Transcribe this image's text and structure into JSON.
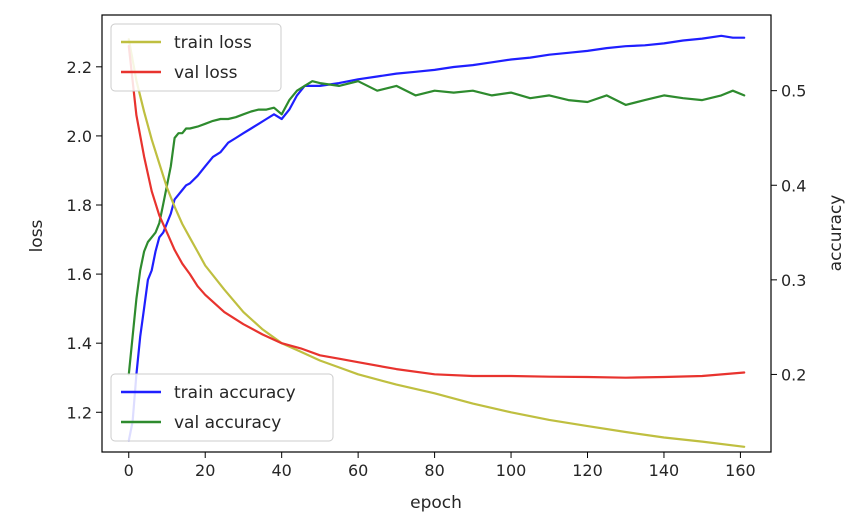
{
  "chart_data": {
    "type": "line",
    "xlabel": "epoch",
    "ylabel_left": "loss",
    "ylabel_right": "accuracy",
    "xlim": [
      -7,
      168
    ],
    "ylim_left": [
      1.085,
      2.35
    ],
    "ylim_right": [
      0.118,
      0.58
    ],
    "x_ticks": [
      0,
      20,
      40,
      60,
      80,
      100,
      120,
      140,
      160
    ],
    "y_left_ticks": [
      1.2,
      1.4,
      1.6,
      1.8,
      2.0,
      2.2
    ],
    "y_right_ticks": [
      0.2,
      0.3,
      0.4,
      0.5
    ],
    "legend_loss": {
      "position": "top-left",
      "entries": [
        "train loss",
        "val loss"
      ]
    },
    "legend_accuracy": {
      "position": "bottom-left",
      "entries": [
        "train accuracy",
        "val accuracy"
      ]
    },
    "series": [
      {
        "name": "train loss",
        "axis": "left",
        "color": "#bfbf40",
        "x": [
          0,
          2,
          4,
          6,
          8,
          10,
          12,
          14,
          16,
          18,
          20,
          25,
          30,
          35,
          40,
          45,
          50,
          55,
          60,
          70,
          80,
          90,
          100,
          110,
          120,
          130,
          140,
          150,
          161
        ],
        "y": [
          2.28,
          2.16,
          2.07,
          1.99,
          1.92,
          1.85,
          1.795,
          1.745,
          1.705,
          1.665,
          1.625,
          1.555,
          1.49,
          1.44,
          1.4,
          1.375,
          1.35,
          1.33,
          1.31,
          1.28,
          1.255,
          1.225,
          1.2,
          1.178,
          1.16,
          1.143,
          1.127,
          1.115,
          1.1
        ]
      },
      {
        "name": "val loss",
        "axis": "left",
        "color": "#e8332e",
        "x": [
          0,
          2,
          4,
          6,
          8,
          10,
          12,
          14,
          16,
          18,
          20,
          25,
          30,
          35,
          40,
          45,
          50,
          55,
          60,
          70,
          80,
          90,
          100,
          110,
          120,
          130,
          140,
          150,
          161
        ],
        "y": [
          2.26,
          2.06,
          1.94,
          1.84,
          1.77,
          1.72,
          1.67,
          1.63,
          1.6,
          1.565,
          1.54,
          1.49,
          1.455,
          1.425,
          1.4,
          1.385,
          1.365,
          1.355,
          1.345,
          1.325,
          1.31,
          1.305,
          1.305,
          1.303,
          1.302,
          1.3,
          1.302,
          1.305,
          1.315
        ]
      },
      {
        "name": "train accuracy",
        "axis": "right",
        "color": "#1f1fff",
        "x": [
          0,
          1,
          2,
          3,
          4,
          5,
          6,
          7,
          8,
          9,
          10,
          11,
          12,
          13,
          14,
          15,
          16,
          18,
          20,
          22,
          24,
          26,
          28,
          30,
          32,
          34,
          36,
          38,
          40,
          42,
          44,
          46,
          48,
          50,
          55,
          60,
          65,
          70,
          75,
          80,
          85,
          90,
          95,
          100,
          105,
          110,
          115,
          120,
          125,
          130,
          135,
          140,
          145,
          150,
          155,
          158,
          161
        ],
        "y": [
          0.13,
          0.15,
          0.2,
          0.24,
          0.27,
          0.3,
          0.31,
          0.33,
          0.345,
          0.35,
          0.36,
          0.37,
          0.385,
          0.39,
          0.395,
          0.4,
          0.402,
          0.41,
          0.42,
          0.43,
          0.435,
          0.445,
          0.45,
          0.455,
          0.46,
          0.465,
          0.47,
          0.475,
          0.47,
          0.48,
          0.495,
          0.505,
          0.505,
          0.505,
          0.508,
          0.512,
          0.515,
          0.518,
          0.52,
          0.522,
          0.525,
          0.527,
          0.53,
          0.533,
          0.535,
          0.538,
          0.54,
          0.542,
          0.545,
          0.547,
          0.548,
          0.55,
          0.553,
          0.555,
          0.558,
          0.556,
          0.556
        ]
      },
      {
        "name": "val accuracy",
        "axis": "right",
        "color": "#2e8b2e",
        "x": [
          0,
          1,
          2,
          3,
          4,
          5,
          6,
          7,
          8,
          9,
          10,
          11,
          12,
          13,
          14,
          15,
          16,
          18,
          20,
          22,
          24,
          26,
          28,
          30,
          32,
          34,
          36,
          38,
          40,
          42,
          44,
          46,
          48,
          50,
          55,
          60,
          65,
          70,
          75,
          80,
          85,
          90,
          95,
          100,
          105,
          110,
          115,
          120,
          125,
          130,
          135,
          140,
          145,
          150,
          155,
          158,
          161
        ],
        "y": [
          0.2,
          0.24,
          0.28,
          0.31,
          0.33,
          0.34,
          0.345,
          0.35,
          0.36,
          0.38,
          0.4,
          0.42,
          0.45,
          0.455,
          0.455,
          0.46,
          0.46,
          0.462,
          0.465,
          0.468,
          0.47,
          0.47,
          0.472,
          0.475,
          0.478,
          0.48,
          0.48,
          0.482,
          0.475,
          0.49,
          0.5,
          0.505,
          0.51,
          0.508,
          0.505,
          0.51,
          0.5,
          0.505,
          0.495,
          0.5,
          0.498,
          0.5,
          0.495,
          0.498,
          0.492,
          0.495,
          0.49,
          0.488,
          0.495,
          0.485,
          0.49,
          0.495,
          0.492,
          0.49,
          0.495,
          0.5,
          0.495
        ]
      }
    ]
  }
}
